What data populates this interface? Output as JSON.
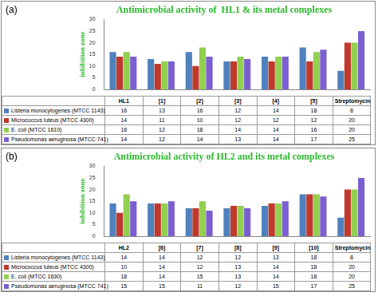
{
  "chart_data": [
    {
      "type": "bar",
      "annotation": "(a)",
      "title": "Antimicrobial activity of  HL1 & its metal complexes",
      "y_label": "inhibition zone",
      "categories": [
        "HL1",
        "[1]",
        "[2]",
        "[3]",
        "[4]",
        "[5]",
        "Streptomycin"
      ],
      "series": [
        {
          "name": "Listeria monocytogenes (MTCC 1143)",
          "color": "#4f81bd",
          "values": [
            16,
            13,
            16,
            12,
            14,
            18,
            8
          ]
        },
        {
          "name": "Micrococcus luteus (MTCC 4300)",
          "color": "#c0392b",
          "values": [
            14,
            11,
            10,
            12,
            12,
            12,
            20
          ]
        },
        {
          "name": "E. coli (MTCC 1610)",
          "color": "#92d050",
          "values": [
            16,
            12,
            18,
            14,
            14,
            16,
            20
          ]
        },
        {
          "name": "Pseudomonas aeruginosa (MTCC 741)",
          "color": "#7b5fd0",
          "values": [
            14,
            12,
            14,
            13,
            14,
            17,
            25
          ]
        }
      ],
      "ylim": [
        0,
        30
      ],
      "yticks": [
        0,
        5,
        10,
        15,
        20,
        25,
        30
      ],
      "grid": false,
      "tick_labels": "y"
    },
    {
      "type": "bar",
      "annotation": "(b)",
      "title": "Antimicrobial activity of HL2 and its metal complexes",
      "y_label": "inhibition zone",
      "categories": [
        "HL2",
        "[6]",
        "[7]",
        "[8]",
        "[9]",
        "[10]",
        "Streptomycin"
      ],
      "series": [
        {
          "name": "Listeria monocytogenes (MTCC 1143)",
          "color": "#4f81bd",
          "values": [
            14,
            14,
            12,
            12,
            13,
            18,
            8
          ]
        },
        {
          "name": "Micrococcus luteus (MTCC 4300)",
          "color": "#c0392b",
          "values": [
            10,
            14,
            12,
            13,
            14,
            18,
            20
          ]
        },
        {
          "name": "E. coli (MTCC 1630)",
          "color": "#92d050",
          "values": [
            18,
            14,
            15,
            13,
            14,
            18,
            20
          ]
        },
        {
          "name": "Pseudomonas aeruginosa (MTCC 741)",
          "color": "#7b5fd0",
          "values": [
            15,
            15,
            11,
            12,
            15,
            17,
            25
          ]
        }
      ],
      "ylim": [
        0,
        30
      ],
      "yticks": [
        0,
        5,
        10,
        15,
        20,
        25,
        30
      ],
      "grid": false,
      "tick_labels": "y"
    }
  ]
}
